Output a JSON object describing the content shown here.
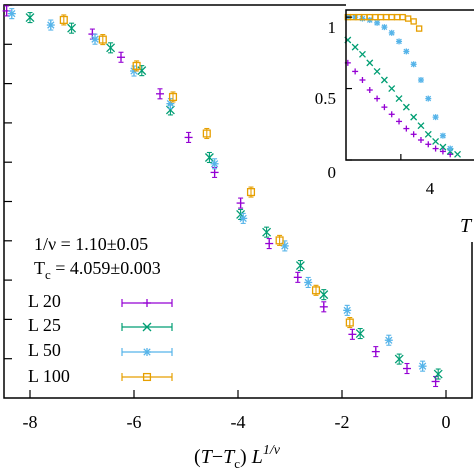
{
  "chart_data": [
    {
      "type": "scatter",
      "panel": "main",
      "xlabel": "(T−Tc) L^1/ν",
      "xlabel_parts": {
        "open": "(",
        "t": "T",
        "minus": "−",
        "tc": "T",
        "c_sub": "c",
        "close": ")",
        "l": " L",
        "sup": "1/ν"
      },
      "xlim": [
        -8.5,
        0.5
      ],
      "ylim": [
        0,
        1.0
      ],
      "x_ticks": [
        -8,
        -6,
        -4,
        -2,
        0
      ],
      "x_tick_labels": [
        "-8",
        "-6",
        "-4",
        "-2",
        "0"
      ],
      "y_tick_count": 10,
      "grid": false,
      "legend_position": "bottom-left",
      "annotations": [
        {
          "id": "nu",
          "text": "1/ν = 1.10±0.05"
        },
        {
          "id": "tc",
          "prefix": "T",
          "sub": "c",
          "text": " = 4.059±0.003"
        }
      ],
      "series": [
        {
          "name": "L 20",
          "color": "#9400d3",
          "marker": "plus",
          "x": [
            -8.45,
            -6.8,
            -6.25,
            -5.5,
            -4.95,
            -4.45,
            -3.95,
            -3.4,
            -2.85,
            -2.35,
            -1.8,
            -1.35,
            -0.75,
            -0.2
          ],
          "y": [
            0.985,
            0.926,
            0.867,
            0.774,
            0.663,
            0.574,
            0.496,
            0.393,
            0.307,
            0.232,
            0.162,
            0.118,
            0.075,
            0.042
          ]
        },
        {
          "name": "L 25",
          "color": "#009e73",
          "marker": "x",
          "x": [
            -8.0,
            -7.2,
            -6.45,
            -5.85,
            -5.3,
            -4.55,
            -3.95,
            -3.45,
            -2.8,
            -2.35,
            -1.65,
            -0.9,
            -0.15
          ],
          "y": [
            0.968,
            0.941,
            0.891,
            0.833,
            0.733,
            0.612,
            0.467,
            0.422,
            0.337,
            0.263,
            0.164,
            0.099,
            0.061
          ]
        },
        {
          "name": "L 50",
          "color": "#56b4e9",
          "marker": "star",
          "x": [
            -8.35,
            -7.6,
            -6.75,
            -6.0,
            -5.3,
            -4.45,
            -3.9,
            -3.1,
            -2.65,
            -1.9,
            -1.1,
            -0.45
          ],
          "y": [
            0.978,
            0.949,
            0.913,
            0.832,
            0.749,
            0.596,
            0.457,
            0.387,
            0.294,
            0.223,
            0.147,
            0.081
          ]
        },
        {
          "name": "L 100",
          "color": "#e69f00",
          "marker": "square",
          "x": [
            -7.35,
            -6.6,
            -5.95,
            -5.25,
            -4.6,
            -3.75,
            -3.2,
            -2.5,
            -1.85
          ],
          "y": [
            0.962,
            0.912,
            0.845,
            0.766,
            0.673,
            0.524,
            0.401,
            0.274,
            0.192
          ]
        }
      ]
    },
    {
      "type": "scatter",
      "panel": "inset",
      "xlabel": "T",
      "xlim": [
        3.4,
        4.8
      ],
      "ylim": [
        0,
        1.05
      ],
      "x_ticks": [
        4
      ],
      "x_tick_labels": [
        "4"
      ],
      "y_ticks": [
        0,
        0.5,
        1
      ],
      "y_tick_labels": [
        "0",
        "0.5",
        "1"
      ],
      "series": [
        {
          "name": "L 20",
          "color": "#9400d3",
          "marker": "plus",
          "x": [
            3.42,
            3.5,
            3.58,
            3.66,
            3.74,
            3.82,
            3.9,
            3.98,
            4.06,
            4.14,
            4.22,
            4.3,
            4.38,
            4.46,
            4.54
          ],
          "y": [
            0.68,
            0.62,
            0.56,
            0.49,
            0.43,
            0.37,
            0.32,
            0.27,
            0.22,
            0.18,
            0.14,
            0.11,
            0.08,
            0.06,
            0.04
          ]
        },
        {
          "name": "L 25",
          "color": "#009e73",
          "marker": "x",
          "x": [
            3.42,
            3.5,
            3.58,
            3.66,
            3.74,
            3.82,
            3.9,
            3.98,
            4.06,
            4.14,
            4.22,
            4.3,
            4.38,
            4.46,
            4.54,
            4.62
          ],
          "y": [
            0.84,
            0.79,
            0.74,
            0.68,
            0.62,
            0.56,
            0.5,
            0.43,
            0.37,
            0.3,
            0.24,
            0.18,
            0.13,
            0.09,
            0.06,
            0.04
          ]
        },
        {
          "name": "L 50",
          "color": "#56b4e9",
          "marker": "star",
          "x": [
            3.42,
            3.5,
            3.58,
            3.66,
            3.74,
            3.82,
            3.9,
            3.98,
            4.06,
            4.14,
            4.22,
            4.3,
            4.38,
            4.46,
            4.54
          ],
          "y": [
            1.0,
            1.0,
            0.99,
            0.98,
            0.96,
            0.93,
            0.89,
            0.83,
            0.76,
            0.67,
            0.56,
            0.43,
            0.3,
            0.17,
            0.08
          ]
        },
        {
          "name": "L 100",
          "color": "#e69f00",
          "marker": "square",
          "x": [
            3.42,
            3.48,
            3.54,
            3.6,
            3.66,
            3.72,
            3.78,
            3.84,
            3.9,
            3.96,
            4.02,
            4.08,
            4.14,
            4.2
          ],
          "y": [
            1.0,
            1.0,
            1.0,
            1.0,
            1.0,
            1.0,
            1.0,
            1.0,
            1.0,
            1.0,
            1.0,
            0.99,
            0.97,
            0.92
          ]
        }
      ]
    }
  ]
}
